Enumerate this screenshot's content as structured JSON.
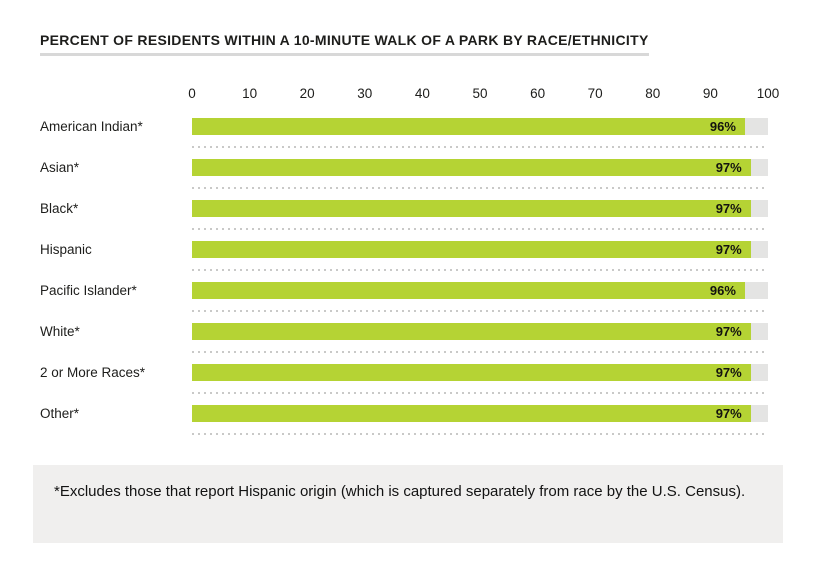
{
  "title": "PERCENT OF RESIDENTS WITHIN A 10-MINUTE WALK OF A PARK BY RACE/ETHNICITY",
  "colors": {
    "bar_green": "#b5d334",
    "track_gray": "#e4e4e3",
    "dotted_separator": "#c9c9c8",
    "title_underline": "#d8d8d8",
    "footnote_bg": "#f0efee",
    "text": "#1d1d1b"
  },
  "chart_data": {
    "type": "bar",
    "orientation": "horizontal",
    "title": "PERCENT OF RESIDENTS WITHIN A 10-MINUTE WALK OF A PARK BY RACE/ETHNICITY",
    "categories": [
      "American Indian*",
      "Asian*",
      "Black*",
      "Hispanic",
      "Pacific Islander*",
      "White*",
      "2 or More Races*",
      "Other*"
    ],
    "values": [
      96,
      97,
      97,
      97,
      96,
      97,
      97,
      97
    ],
    "value_labels": [
      "96%",
      "97%",
      "97%",
      "97%",
      "96%",
      "97%",
      "97%",
      "97%"
    ],
    "xlim": [
      0,
      100
    ],
    "x_ticks": [
      0,
      10,
      20,
      30,
      40,
      50,
      60,
      70,
      80,
      90,
      100
    ],
    "xlabel": "",
    "ylabel": "",
    "grid": "dotted-row-separators",
    "legend": "none",
    "value_label_position": "inside-end"
  },
  "footnote": {
    "text": "*Excludes those that report Hispanic origin (which is captured separately from race by the U.S. Census)."
  }
}
